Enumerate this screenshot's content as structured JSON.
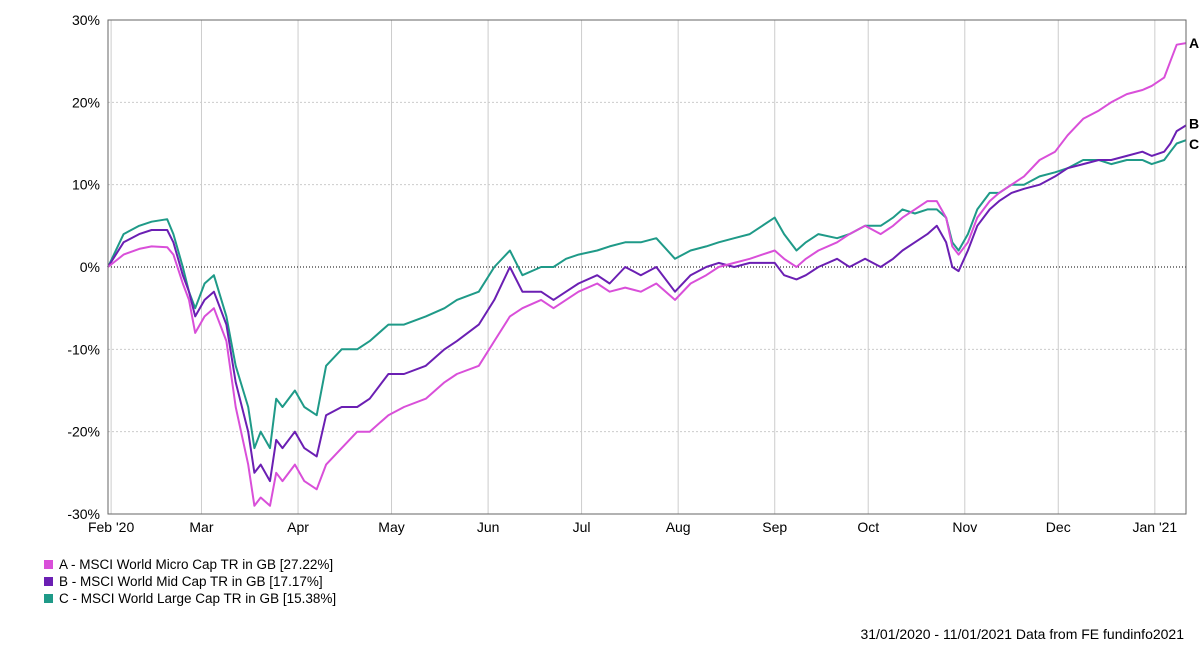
{
  "chart_data": {
    "type": "line",
    "y_unit": "%",
    "ylim": [
      -30,
      30
    ],
    "y_ticks": [
      30,
      20,
      10,
      0,
      -10,
      -20,
      -30
    ],
    "y_tick_labels": [
      "30%",
      "20%",
      "10%",
      "0%",
      "-10%",
      "-20%",
      "-30%"
    ],
    "x_range": [
      "2020-01-31",
      "2021-01-11"
    ],
    "x_ticks": [
      {
        "date": "2020-02-01",
        "label": "Feb '20"
      },
      {
        "date": "2020-03-01",
        "label": "Mar"
      },
      {
        "date": "2020-04-01",
        "label": "Apr"
      },
      {
        "date": "2020-05-01",
        "label": "May"
      },
      {
        "date": "2020-06-01",
        "label": "Jun"
      },
      {
        "date": "2020-07-01",
        "label": "Jul"
      },
      {
        "date": "2020-08-01",
        "label": "Aug"
      },
      {
        "date": "2020-09-01",
        "label": "Sep"
      },
      {
        "date": "2020-10-01",
        "label": "Oct"
      },
      {
        "date": "2020-11-01",
        "label": "Nov"
      },
      {
        "date": "2020-12-01",
        "label": "Dec"
      },
      {
        "date": "2021-01-01",
        "label": "Jan '21"
      }
    ],
    "grid": true,
    "zero_line": "dotted",
    "legend_position": "bottom-left",
    "series": [
      {
        "key": "A",
        "name": "A - MSCI World Micro Cap TR in GB [27.22%]",
        "color": "#d94fd9",
        "points": [
          [
            "2020-01-31",
            0
          ],
          [
            "2020-02-05",
            1.5
          ],
          [
            "2020-02-10",
            2.2
          ],
          [
            "2020-02-14",
            2.5
          ],
          [
            "2020-02-19",
            2.4
          ],
          [
            "2020-02-21",
            1.5
          ],
          [
            "2020-02-24",
            -2
          ],
          [
            "2020-02-26",
            -4
          ],
          [
            "2020-02-28",
            -8
          ],
          [
            "2020-03-02",
            -6
          ],
          [
            "2020-03-05",
            -5
          ],
          [
            "2020-03-09",
            -9
          ],
          [
            "2020-03-12",
            -17
          ],
          [
            "2020-03-16",
            -24
          ],
          [
            "2020-03-18",
            -29
          ],
          [
            "2020-03-20",
            -28
          ],
          [
            "2020-03-23",
            -29
          ],
          [
            "2020-03-25",
            -25
          ],
          [
            "2020-03-27",
            -26
          ],
          [
            "2020-03-31",
            -24
          ],
          [
            "2020-04-03",
            -26
          ],
          [
            "2020-04-07",
            -27
          ],
          [
            "2020-04-10",
            -24
          ],
          [
            "2020-04-15",
            -22
          ],
          [
            "2020-04-20",
            -20
          ],
          [
            "2020-04-24",
            -20
          ],
          [
            "2020-04-30",
            -18
          ],
          [
            "2020-05-05",
            -17
          ],
          [
            "2020-05-12",
            -16
          ],
          [
            "2020-05-18",
            -14
          ],
          [
            "2020-05-22",
            -13
          ],
          [
            "2020-05-29",
            -12
          ],
          [
            "2020-06-03",
            -9
          ],
          [
            "2020-06-08",
            -6
          ],
          [
            "2020-06-12",
            -5
          ],
          [
            "2020-06-18",
            -4
          ],
          [
            "2020-06-22",
            -5
          ],
          [
            "2020-06-26",
            -4
          ],
          [
            "2020-06-30",
            -3
          ],
          [
            "2020-07-06",
            -2
          ],
          [
            "2020-07-10",
            -3
          ],
          [
            "2020-07-15",
            -2.5
          ],
          [
            "2020-07-20",
            -3
          ],
          [
            "2020-07-25",
            -2
          ],
          [
            "2020-07-31",
            -4
          ],
          [
            "2020-08-05",
            -2
          ],
          [
            "2020-08-10",
            -1
          ],
          [
            "2020-08-14",
            0
          ],
          [
            "2020-08-19",
            0.5
          ],
          [
            "2020-08-24",
            1
          ],
          [
            "2020-08-28",
            1.5
          ],
          [
            "2020-09-01",
            2
          ],
          [
            "2020-09-04",
            1
          ],
          [
            "2020-09-08",
            0
          ],
          [
            "2020-09-11",
            1
          ],
          [
            "2020-09-15",
            2
          ],
          [
            "2020-09-21",
            3
          ],
          [
            "2020-09-25",
            4
          ],
          [
            "2020-09-30",
            5
          ],
          [
            "2020-10-05",
            4
          ],
          [
            "2020-10-09",
            5
          ],
          [
            "2020-10-12",
            6
          ],
          [
            "2020-10-16",
            7
          ],
          [
            "2020-10-20",
            8
          ],
          [
            "2020-10-23",
            8
          ],
          [
            "2020-10-26",
            6
          ],
          [
            "2020-10-28",
            2.5
          ],
          [
            "2020-10-30",
            1.5
          ],
          [
            "2020-11-02",
            3
          ],
          [
            "2020-11-05",
            6
          ],
          [
            "2020-11-09",
            8
          ],
          [
            "2020-11-12",
            9
          ],
          [
            "2020-11-16",
            10
          ],
          [
            "2020-11-20",
            11
          ],
          [
            "2020-11-25",
            13
          ],
          [
            "2020-11-30",
            14
          ],
          [
            "2020-12-04",
            16
          ],
          [
            "2020-12-09",
            18
          ],
          [
            "2020-12-14",
            19
          ],
          [
            "2020-12-18",
            20
          ],
          [
            "2020-12-23",
            21
          ],
          [
            "2020-12-28",
            21.5
          ],
          [
            "2020-12-31",
            22
          ],
          [
            "2021-01-04",
            23
          ],
          [
            "2021-01-06",
            25
          ],
          [
            "2021-01-08",
            27
          ],
          [
            "2021-01-11",
            27.2
          ]
        ]
      },
      {
        "key": "B",
        "name": "B - MSCI World Mid Cap TR in GB [17.17%]",
        "color": "#6b1fb3",
        "points": [
          [
            "2020-01-31",
            0
          ],
          [
            "2020-02-05",
            3
          ],
          [
            "2020-02-10",
            4
          ],
          [
            "2020-02-14",
            4.5
          ],
          [
            "2020-02-19",
            4.5
          ],
          [
            "2020-02-21",
            3
          ],
          [
            "2020-02-24",
            -1
          ],
          [
            "2020-02-26",
            -3
          ],
          [
            "2020-02-28",
            -6
          ],
          [
            "2020-03-02",
            -4
          ],
          [
            "2020-03-05",
            -3
          ],
          [
            "2020-03-09",
            -7
          ],
          [
            "2020-03-12",
            -14
          ],
          [
            "2020-03-16",
            -20
          ],
          [
            "2020-03-18",
            -25
          ],
          [
            "2020-03-20",
            -24
          ],
          [
            "2020-03-23",
            -26
          ],
          [
            "2020-03-25",
            -21
          ],
          [
            "2020-03-27",
            -22
          ],
          [
            "2020-03-31",
            -20
          ],
          [
            "2020-04-03",
            -22
          ],
          [
            "2020-04-07",
            -23
          ],
          [
            "2020-04-10",
            -18
          ],
          [
            "2020-04-15",
            -17
          ],
          [
            "2020-04-20",
            -17
          ],
          [
            "2020-04-24",
            -16
          ],
          [
            "2020-04-30",
            -13
          ],
          [
            "2020-05-05",
            -13
          ],
          [
            "2020-05-12",
            -12
          ],
          [
            "2020-05-18",
            -10
          ],
          [
            "2020-05-22",
            -9
          ],
          [
            "2020-05-29",
            -7
          ],
          [
            "2020-06-03",
            -4
          ],
          [
            "2020-06-08",
            0
          ],
          [
            "2020-06-12",
            -3
          ],
          [
            "2020-06-18",
            -3
          ],
          [
            "2020-06-22",
            -4
          ],
          [
            "2020-06-26",
            -3
          ],
          [
            "2020-06-30",
            -2
          ],
          [
            "2020-07-06",
            -1
          ],
          [
            "2020-07-10",
            -2
          ],
          [
            "2020-07-15",
            0
          ],
          [
            "2020-07-20",
            -1
          ],
          [
            "2020-07-25",
            0
          ],
          [
            "2020-07-31",
            -3
          ],
          [
            "2020-08-05",
            -1
          ],
          [
            "2020-08-10",
            0
          ],
          [
            "2020-08-14",
            0.5
          ],
          [
            "2020-08-19",
            0
          ],
          [
            "2020-08-24",
            0.5
          ],
          [
            "2020-08-28",
            0.5
          ],
          [
            "2020-09-01",
            0.5
          ],
          [
            "2020-09-04",
            -1
          ],
          [
            "2020-09-08",
            -1.5
          ],
          [
            "2020-09-11",
            -1
          ],
          [
            "2020-09-15",
            0
          ],
          [
            "2020-09-21",
            1
          ],
          [
            "2020-09-25",
            0
          ],
          [
            "2020-09-30",
            1
          ],
          [
            "2020-10-05",
            0
          ],
          [
            "2020-10-09",
            1
          ],
          [
            "2020-10-12",
            2
          ],
          [
            "2020-10-16",
            3
          ],
          [
            "2020-10-20",
            4
          ],
          [
            "2020-10-23",
            5
          ],
          [
            "2020-10-26",
            3
          ],
          [
            "2020-10-28",
            0
          ],
          [
            "2020-10-30",
            -0.5
          ],
          [
            "2020-11-02",
            2
          ],
          [
            "2020-11-05",
            5
          ],
          [
            "2020-11-09",
            7
          ],
          [
            "2020-11-12",
            8
          ],
          [
            "2020-11-16",
            9
          ],
          [
            "2020-11-20",
            9.5
          ],
          [
            "2020-11-25",
            10
          ],
          [
            "2020-11-30",
            11
          ],
          [
            "2020-12-04",
            12
          ],
          [
            "2020-12-09",
            12.5
          ],
          [
            "2020-12-14",
            13
          ],
          [
            "2020-12-18",
            13
          ],
          [
            "2020-12-23",
            13.5
          ],
          [
            "2020-12-28",
            14
          ],
          [
            "2020-12-31",
            13.5
          ],
          [
            "2021-01-04",
            14
          ],
          [
            "2021-01-06",
            15
          ],
          [
            "2021-01-08",
            16.5
          ],
          [
            "2021-01-11",
            17.2
          ]
        ]
      },
      {
        "key": "C",
        "name": "C - MSCI World Large Cap TR in GB [15.38%]",
        "color": "#1f9a88",
        "points": [
          [
            "2020-01-31",
            0
          ],
          [
            "2020-02-05",
            4
          ],
          [
            "2020-02-10",
            5
          ],
          [
            "2020-02-14",
            5.5
          ],
          [
            "2020-02-19",
            5.8
          ],
          [
            "2020-02-21",
            4
          ],
          [
            "2020-02-24",
            0
          ],
          [
            "2020-02-26",
            -3
          ],
          [
            "2020-02-28",
            -5
          ],
          [
            "2020-03-02",
            -2
          ],
          [
            "2020-03-05",
            -1
          ],
          [
            "2020-03-09",
            -6
          ],
          [
            "2020-03-12",
            -12
          ],
          [
            "2020-03-16",
            -17
          ],
          [
            "2020-03-18",
            -22
          ],
          [
            "2020-03-20",
            -20
          ],
          [
            "2020-03-23",
            -22
          ],
          [
            "2020-03-25",
            -16
          ],
          [
            "2020-03-27",
            -17
          ],
          [
            "2020-03-31",
            -15
          ],
          [
            "2020-04-03",
            -17
          ],
          [
            "2020-04-07",
            -18
          ],
          [
            "2020-04-10",
            -12
          ],
          [
            "2020-04-15",
            -10
          ],
          [
            "2020-04-20",
            -10
          ],
          [
            "2020-04-24",
            -9
          ],
          [
            "2020-04-30",
            -7
          ],
          [
            "2020-05-05",
            -7
          ],
          [
            "2020-05-12",
            -6
          ],
          [
            "2020-05-18",
            -5
          ],
          [
            "2020-05-22",
            -4
          ],
          [
            "2020-05-29",
            -3
          ],
          [
            "2020-06-03",
            0
          ],
          [
            "2020-06-08",
            2
          ],
          [
            "2020-06-12",
            -1
          ],
          [
            "2020-06-18",
            0
          ],
          [
            "2020-06-22",
            0
          ],
          [
            "2020-06-26",
            1
          ],
          [
            "2020-06-30",
            1.5
          ],
          [
            "2020-07-06",
            2
          ],
          [
            "2020-07-10",
            2.5
          ],
          [
            "2020-07-15",
            3
          ],
          [
            "2020-07-20",
            3
          ],
          [
            "2020-07-25",
            3.5
          ],
          [
            "2020-07-31",
            1
          ],
          [
            "2020-08-05",
            2
          ],
          [
            "2020-08-10",
            2.5
          ],
          [
            "2020-08-14",
            3
          ],
          [
            "2020-08-19",
            3.5
          ],
          [
            "2020-08-24",
            4
          ],
          [
            "2020-08-28",
            5
          ],
          [
            "2020-09-01",
            6
          ],
          [
            "2020-09-04",
            4
          ],
          [
            "2020-09-08",
            2
          ],
          [
            "2020-09-11",
            3
          ],
          [
            "2020-09-15",
            4
          ],
          [
            "2020-09-21",
            3.5
          ],
          [
            "2020-09-25",
            4
          ],
          [
            "2020-09-30",
            5
          ],
          [
            "2020-10-05",
            5
          ],
          [
            "2020-10-09",
            6
          ],
          [
            "2020-10-12",
            7
          ],
          [
            "2020-10-16",
            6.5
          ],
          [
            "2020-10-20",
            7
          ],
          [
            "2020-10-23",
            7
          ],
          [
            "2020-10-26",
            6
          ],
          [
            "2020-10-28",
            3
          ],
          [
            "2020-10-30",
            2
          ],
          [
            "2020-11-02",
            4
          ],
          [
            "2020-11-05",
            7
          ],
          [
            "2020-11-09",
            9
          ],
          [
            "2020-11-12",
            9
          ],
          [
            "2020-11-16",
            10
          ],
          [
            "2020-11-20",
            10
          ],
          [
            "2020-11-25",
            11
          ],
          [
            "2020-11-30",
            11.5
          ],
          [
            "2020-12-04",
            12
          ],
          [
            "2020-12-09",
            13
          ],
          [
            "2020-12-14",
            13
          ],
          [
            "2020-12-18",
            12.5
          ],
          [
            "2020-12-23",
            13
          ],
          [
            "2020-12-28",
            13
          ],
          [
            "2020-12-31",
            12.5
          ],
          [
            "2021-01-04",
            13
          ],
          [
            "2021-01-06",
            14
          ],
          [
            "2021-01-08",
            15
          ],
          [
            "2021-01-11",
            15.4
          ]
        ]
      }
    ]
  },
  "footer": {
    "text": "31/01/2020 - 11/01/2021 Data from FE fundinfo2021"
  }
}
